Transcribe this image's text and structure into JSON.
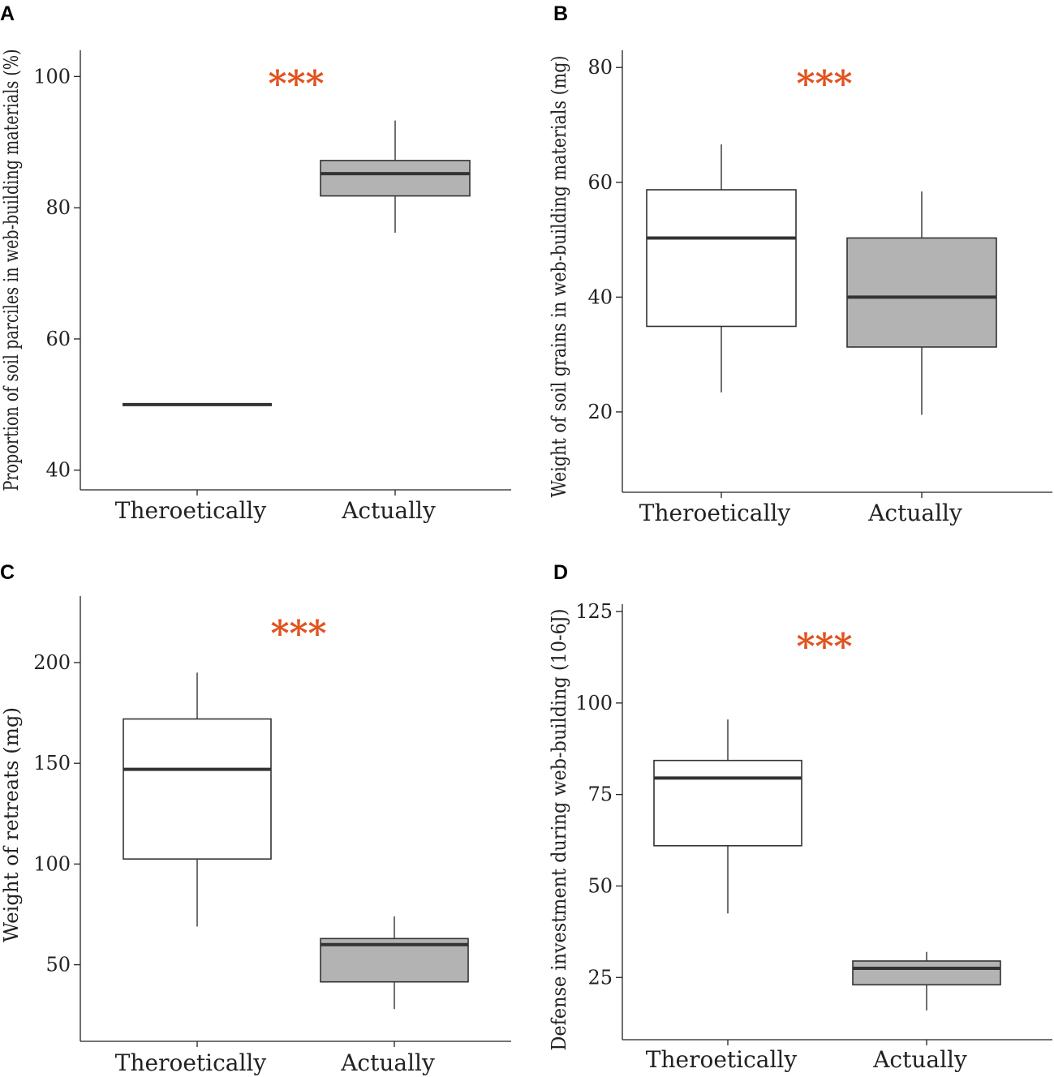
{
  "colors": {
    "significance": "#e2521d",
    "theoretical_fill": "#ffffff",
    "actual_fill": "#b3b3b3",
    "line": "#333333"
  },
  "chart_data": [
    {
      "panel": "A",
      "type": "box",
      "ylabel": "Proportion of soil parciles in web-building materials (%)",
      "ylim": [
        37,
        104
      ],
      "yticks": [
        40,
        60,
        80,
        100
      ],
      "categories": [
        "Theroetically",
        "Actually"
      ],
      "significance": "***",
      "boxes": [
        {
          "category": "Theroetically",
          "min": 50,
          "q1": 50,
          "median": 50,
          "q3": 50,
          "max": 50
        },
        {
          "category": "Actually",
          "min": 76.2,
          "q1": 81.8,
          "median": 85.2,
          "q3": 87.2,
          "max": 93.3
        }
      ]
    },
    {
      "panel": "B",
      "type": "box",
      "ylabel": "Weight of soil grains in web-building materials (mg)",
      "ylim": [
        6,
        83
      ],
      "yticks": [
        20,
        40,
        60,
        80
      ],
      "categories": [
        "Theroetically",
        "Actually"
      ],
      "significance": "***",
      "boxes": [
        {
          "category": "Theroetically",
          "min": 23.4,
          "q1": 34.9,
          "median": 50.3,
          "q3": 58.7,
          "max": 66.6
        },
        {
          "category": "Actually",
          "min": 19.5,
          "q1": 31.3,
          "median": 40.0,
          "q3": 50.3,
          "max": 58.4
        }
      ]
    },
    {
      "panel": "C",
      "type": "box",
      "ylabel": "Weight of retreats (mg)",
      "ylim": [
        12,
        233
      ],
      "yticks": [
        50,
        100,
        150,
        200
      ],
      "categories": [
        "Theroetically",
        "Actually"
      ],
      "significance": "***",
      "boxes": [
        {
          "category": "Theroetically",
          "min": 69,
          "q1": 102.5,
          "median": 147,
          "q3": 172,
          "max": 195
        },
        {
          "category": "Actually",
          "min": 28,
          "q1": 41.5,
          "median": 60,
          "q3": 63,
          "max": 74
        }
      ]
    },
    {
      "panel": "D",
      "type": "box",
      "ylabel": "Defense investment during web-building (10-6J)",
      "ylim": [
        8,
        127
      ],
      "yticks": [
        25,
        50,
        75,
        100,
        125
      ],
      "categories": [
        "Theroetically",
        "Actually"
      ],
      "significance": "***",
      "boxes": [
        {
          "category": "Theroetically",
          "min": 42.5,
          "q1": 61,
          "median": 79.5,
          "q3": 84.3,
          "max": 95.5
        },
        {
          "category": "Actually",
          "min": 16,
          "q1": 23,
          "median": 27.5,
          "q3": 29.5,
          "max": 32
        }
      ]
    }
  ]
}
